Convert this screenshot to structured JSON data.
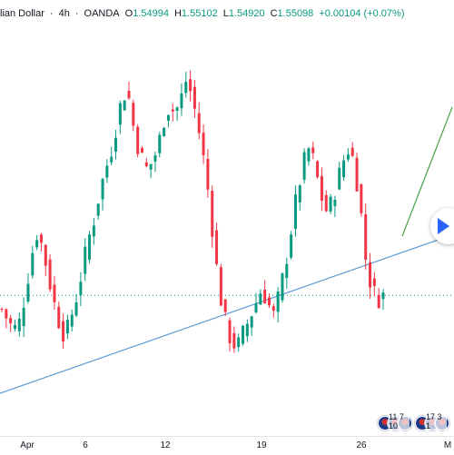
{
  "header": {
    "symbol": "lian Dollar",
    "separator1": "·",
    "interval": "4h",
    "separator2": "·",
    "broker": "OANDA",
    "open_label": "O",
    "open": "1.54994",
    "high_label": "H",
    "high": "1.55102",
    "low_label": "L",
    "low": "1.54920",
    "close_label": "C",
    "close": "1.55098",
    "change": "+0.00104 (+0.07%)"
  },
  "time_axis": {
    "labels": [
      "Apr",
      "6",
      "12",
      "19",
      "26",
      "M"
    ]
  },
  "events": {
    "badges": [
      {
        "text": "11 7 10"
      },
      {
        "text": "17 3 1"
      }
    ]
  },
  "colors": {
    "up": "#089981",
    "down": "#f23645",
    "trendline": "#5b9bd5",
    "projection": "#43a047",
    "dotted_price_line": "#089981",
    "play_accent": "#2962ff"
  },
  "icons": {
    "play": "play-icon",
    "event_flags": "flag-icon"
  },
  "chart_data": {
    "type": "candlestick",
    "series_path": [
      1.549,
      1.5475,
      1.546,
      1.547,
      1.551,
      1.556,
      1.56,
      1.558,
      1.554,
      1.55,
      1.547,
      1.545,
      1.548,
      1.551,
      1.555,
      1.559,
      1.562,
      1.566,
      1.569,
      1.572,
      1.576,
      1.58,
      1.579,
      1.574,
      1.571,
      1.569,
      1.57,
      1.572,
      1.576,
      1.578,
      1.577,
      1.579,
      1.582,
      1.579,
      1.575,
      1.57,
      1.564,
      1.556,
      1.55,
      1.546,
      1.544,
      1.544,
      1.546,
      1.548,
      1.55,
      1.552,
      1.55,
      1.548,
      1.551,
      1.555,
      1.56,
      1.565,
      1.569,
      1.572,
      1.57,
      1.566,
      1.563,
      1.564,
      1.567,
      1.57,
      1.572,
      1.57,
      1.564,
      1.556,
      1.552,
      1.5505,
      1.551
    ],
    "current_price": 1.55098,
    "interval": "4h"
  }
}
